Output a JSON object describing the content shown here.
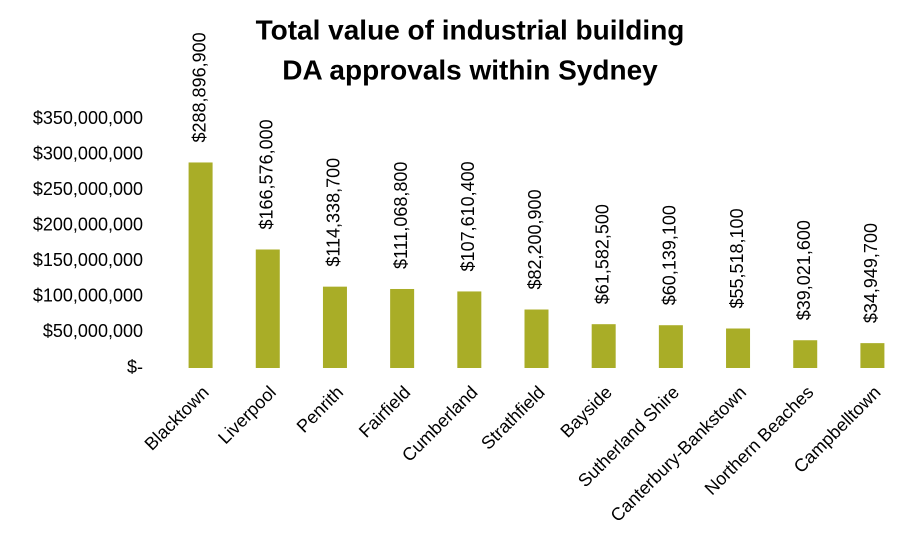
{
  "chart_data": {
    "type": "bar",
    "title": [
      "Total value of industrial building",
      "DA approvals within Sydney"
    ],
    "categories": [
      "Blacktown",
      "Liverpool",
      "Penrith",
      "Fairfield",
      "Cumberland",
      "Strathfield",
      "Bayside",
      "Sutherland Shire",
      "Canterbury-Bankstown",
      "Northern Beaches",
      "Campbelltown"
    ],
    "values": [
      288896900,
      166576000,
      114338700,
      111068800,
      107610400,
      82200900,
      61582500,
      60139100,
      55518100,
      39021600,
      34949700
    ],
    "value_labels": [
      "$288,896,900",
      "$166,576,000",
      "$114,338,700",
      "$111,068,800",
      "$107,610,400",
      "$82,200,900",
      "$61,582,500",
      "$60,139,100",
      "$55,518,100",
      "$39,021,600",
      "$34,949,700"
    ],
    "color": "#a9ad27",
    "ylim": [
      0,
      350000000
    ],
    "yticks": [
      {
        "value": 0,
        "label": "$-"
      },
      {
        "value": 50000000,
        "label": "$50,000,000"
      },
      {
        "value": 100000000,
        "label": "$100,000,000"
      },
      {
        "value": 150000000,
        "label": "$150,000,000"
      },
      {
        "value": 200000000,
        "label": "$200,000,000"
      },
      {
        "value": 250000000,
        "label": "$250,000,000"
      },
      {
        "value": 300000000,
        "label": "$300,000,000"
      },
      {
        "value": 350000000,
        "label": "$350,000,000"
      }
    ],
    "grid": false
  }
}
